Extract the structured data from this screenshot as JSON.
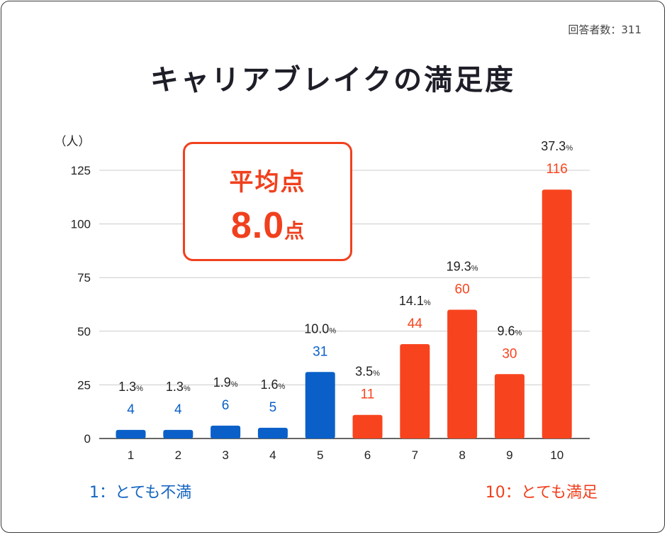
{
  "header": {
    "respondents": "回答者数：311",
    "title": "キャリアブレイクの満足度"
  },
  "average": {
    "label": "平均点",
    "value": "8.0",
    "unit": "点"
  },
  "notes": {
    "low": "1：とても不満",
    "high": "10：とても満足"
  },
  "colors": {
    "low": "#0a60c8",
    "high": "#f8441e",
    "grid": "#cccccc",
    "axis_text": "#222222"
  },
  "chart_data": {
    "type": "bar",
    "title": "キャリアブレイクの満足度",
    "ylabel": "（人）",
    "xlabel": "",
    "ylim": [
      0,
      125
    ],
    "yticks": [
      0,
      25,
      50,
      75,
      100,
      125
    ],
    "grid": true,
    "categories": [
      "1",
      "2",
      "3",
      "4",
      "5",
      "6",
      "7",
      "8",
      "9",
      "10"
    ],
    "values": [
      4,
      4,
      6,
      5,
      31,
      11,
      44,
      60,
      30,
      116
    ],
    "percentages": [
      "1.3",
      "1.3",
      "1.9",
      "1.6",
      "10.0",
      "3.5",
      "14.1",
      "19.3",
      "9.6",
      "37.3"
    ],
    "percent_unit": "%",
    "color_groups": [
      "low",
      "low",
      "low",
      "low",
      "low",
      "high",
      "high",
      "high",
      "high",
      "high"
    ]
  }
}
